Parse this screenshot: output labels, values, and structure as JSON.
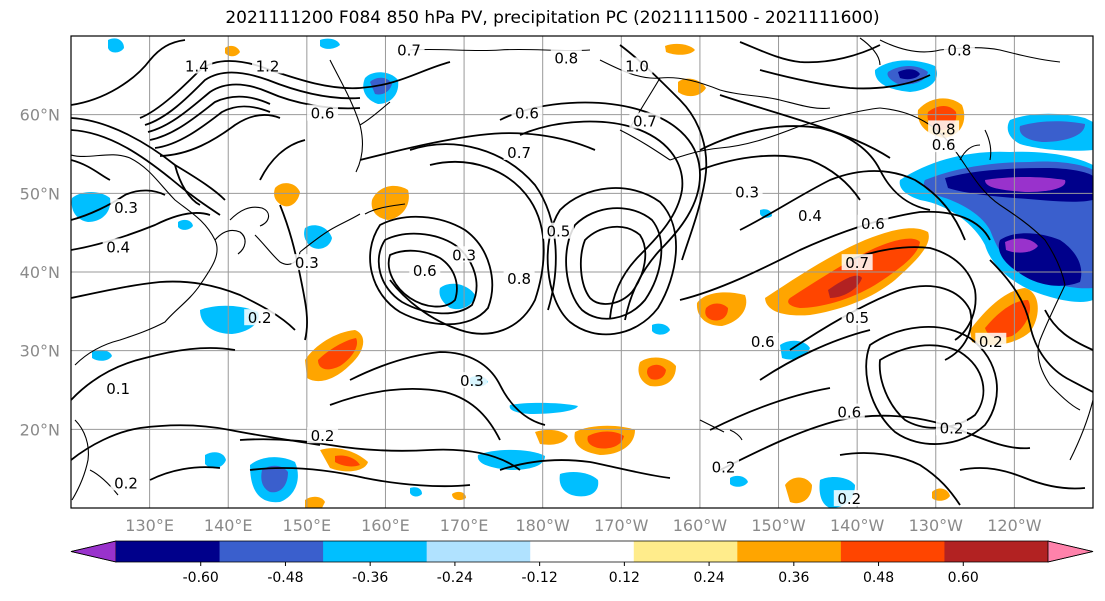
{
  "title": "2021111200 F084 850 hPa PV, precipitation PC (2021111500 - 2021111600)",
  "lat_labels": [
    "60°N",
    "50°N",
    "40°N",
    "30°N",
    "20°N"
  ],
  "lon_labels": [
    "130°E",
    "140°E",
    "150°E",
    "160°E",
    "170°E",
    "180°W",
    "170°W",
    "160°W",
    "150°W",
    "140°W",
    "130°W",
    "120°W"
  ],
  "colorbar": {
    "colors": [
      "#9932cc",
      "#00008b",
      "#3a5fcd",
      "#00bfff",
      "#b0e2ff",
      "#ffffff",
      "#ffec8b",
      "#ffa500",
      "#ff4500",
      "#b22222",
      "#ff82ab"
    ],
    "tick_labels": [
      "-0.60",
      "-0.48",
      "-0.36",
      "-0.24",
      "-0.12",
      "0.12",
      "0.24",
      "0.36",
      "0.48",
      "0.60"
    ]
  },
  "contour_labels": [
    "1.4",
    "1.2",
    "1.0",
    "0.8",
    "0.6",
    "0.7",
    "0.5",
    "0.3",
    "0.4",
    "0.2",
    "0.1"
  ],
  "map_labels": [
    {
      "text": "1.4",
      "lon": 136,
      "lat": 66
    },
    {
      "text": "1.2",
      "lon": 145,
      "lat": 66
    },
    {
      "text": "1.0",
      "lon": 192,
      "lat": 66
    },
    {
      "text": "0.8",
      "lon": 183,
      "lat": 67
    },
    {
      "text": "0.7",
      "lon": 163,
      "lat": 68
    },
    {
      "text": "0.6",
      "lon": 152,
      "lat": 60
    },
    {
      "text": "0.6",
      "lon": 178,
      "lat": 60
    },
    {
      "text": "0.7",
      "lon": 177,
      "lat": 55
    },
    {
      "text": "0.7",
      "lon": 193,
      "lat": 59
    },
    {
      "text": "0.3",
      "lon": 127,
      "lat": 48
    },
    {
      "text": "0.4",
      "lon": 126,
      "lat": 43
    },
    {
      "text": "0.3",
      "lon": 150,
      "lat": 41
    },
    {
      "text": "0.6",
      "lon": 165,
      "lat": 40
    },
    {
      "text": "0.3",
      "lon": 170,
      "lat": 42
    },
    {
      "text": "0.8",
      "lon": 177,
      "lat": 39
    },
    {
      "text": "0.5",
      "lon": 182,
      "lat": 45
    },
    {
      "text": "0.3",
      "lon": 206,
      "lat": 50
    },
    {
      "text": "0.4",
      "lon": 214,
      "lat": 47
    },
    {
      "text": "0.6",
      "lon": 222,
      "lat": 46
    },
    {
      "text": "0.7",
      "lon": 220,
      "lat": 41
    },
    {
      "text": "0.5",
      "lon": 220,
      "lat": 34
    },
    {
      "text": "0.6",
      "lon": 208,
      "lat": 31
    },
    {
      "text": "0.6",
      "lon": 219,
      "lat": 22
    },
    {
      "text": "0.2",
      "lon": 232,
      "lat": 20
    },
    {
      "text": "0.2",
      "lon": 237,
      "lat": 31
    },
    {
      "text": "0.8",
      "lon": 231,
      "lat": 58
    },
    {
      "text": "0.6",
      "lon": 231,
      "lat": 56
    },
    {
      "text": "0.8",
      "lon": 233,
      "lat": 68
    },
    {
      "text": "0.2",
      "lon": 144,
      "lat": 34
    },
    {
      "text": "0.1",
      "lon": 126,
      "lat": 25
    },
    {
      "text": "0.2",
      "lon": 152,
      "lat": 19
    },
    {
      "text": "0.3",
      "lon": 171,
      "lat": 26
    },
    {
      "text": "0.2",
      "lon": 203,
      "lat": 15
    },
    {
      "text": "0.2",
      "lon": 219,
      "lat": 11
    },
    {
      "text": "0.2",
      "lon": 127,
      "lat": 13
    }
  ],
  "colors": {
    "contour": "#000000",
    "grid": "#999999",
    "coast": "#000000"
  }
}
